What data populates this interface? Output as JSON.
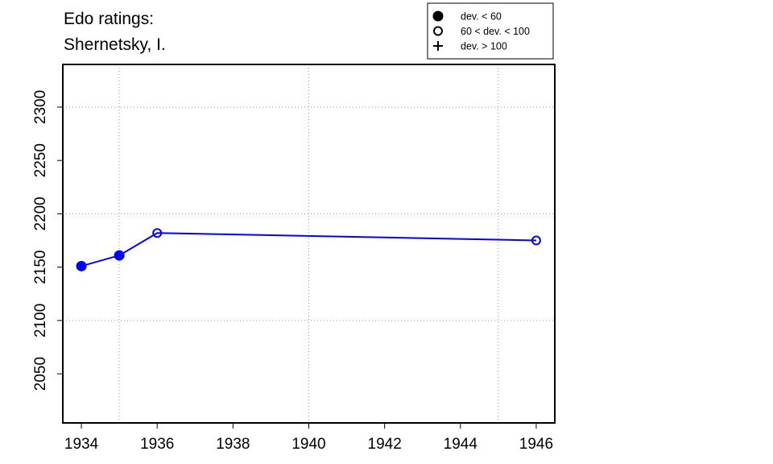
{
  "chart_data": {
    "type": "line",
    "title": [
      "Edo ratings:",
      "Shernetsky, I."
    ],
    "x": [
      1934,
      1935,
      1936,
      1946
    ],
    "series": [
      {
        "color": "#0000ff",
        "values": [
          2151,
          2161,
          2182,
          2175
        ],
        "markers": [
          "filled",
          "filled",
          "open",
          "open"
        ]
      }
    ],
    "xlim": [
      1933.51,
      1946.49
    ],
    "ylim": [
      2004,
      2340
    ],
    "xticks": [
      1934,
      1936,
      1938,
      1940,
      1942,
      1944,
      1946
    ],
    "yticks": [
      2050,
      2100,
      2150,
      2200,
      2250,
      2300
    ],
    "xgrid": [
      1935,
      1940,
      1945
    ],
    "ygrid": [
      2100,
      2200,
      2300
    ],
    "legend": {
      "position": "top-right",
      "entries": [
        {
          "label": "dev. < 60",
          "marker": "filled"
        },
        {
          "label": "60 < dev. < 100",
          "marker": "open"
        },
        {
          "label": "dev. > 100",
          "marker": "plus"
        }
      ]
    }
  }
}
